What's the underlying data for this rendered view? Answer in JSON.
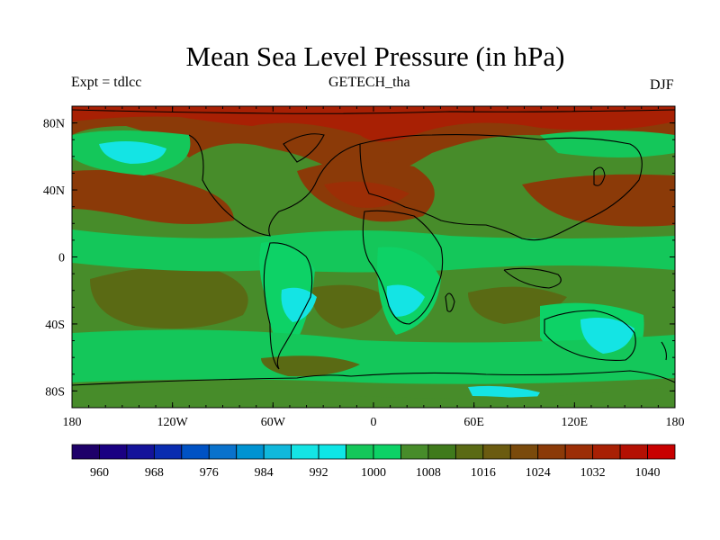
{
  "title": "Mean Sea Level Pressure (in hPa)",
  "left_label": "Expt = tdlcc",
  "center_label": "GETECH_tha",
  "right_label": "DJF",
  "map": {
    "projection": "cylindrical-equidistant",
    "lon_range": [
      -180,
      180
    ],
    "lat_range": [
      -90,
      90
    ],
    "x_ticks": [
      {
        "value": -180,
        "label": "180"
      },
      {
        "value": -120,
        "label": "120W"
      },
      {
        "value": -60,
        "label": "60W"
      },
      {
        "value": 0,
        "label": "0"
      },
      {
        "value": 60,
        "label": "60E"
      },
      {
        "value": 120,
        "label": "120E"
      },
      {
        "value": 180,
        "label": "180"
      }
    ],
    "y_ticks": [
      {
        "value": 80,
        "label": "80N"
      },
      {
        "value": 40,
        "label": "40N"
      },
      {
        "value": 0,
        "label": "0"
      },
      {
        "value": -40,
        "label": "40S"
      },
      {
        "value": -80,
        "label": "80S"
      }
    ]
  },
  "colorbar": {
    "colors": [
      "#1e0069",
      "#1a0082",
      "#14139a",
      "#0a2cb0",
      "#0052c4",
      "#0a72cc",
      "#0093d2",
      "#10b8dc",
      "#14e4e4",
      "#0ee6e6",
      "#14c75a",
      "#0dd266",
      "#478c2a",
      "#3f7a1c",
      "#5a6a14",
      "#6b5b10",
      "#7a4a0c",
      "#8b3a08",
      "#9c2e06",
      "#a82004",
      "#b41003",
      "#c80000"
    ],
    "labels": [
      "960",
      "968",
      "976",
      "984",
      "992",
      "1000",
      "1008",
      "1016",
      "1024",
      "1032",
      "1040"
    ],
    "label_index": [
      1,
      3,
      5,
      7,
      9,
      11,
      13,
      15,
      17,
      19,
      21
    ]
  }
}
